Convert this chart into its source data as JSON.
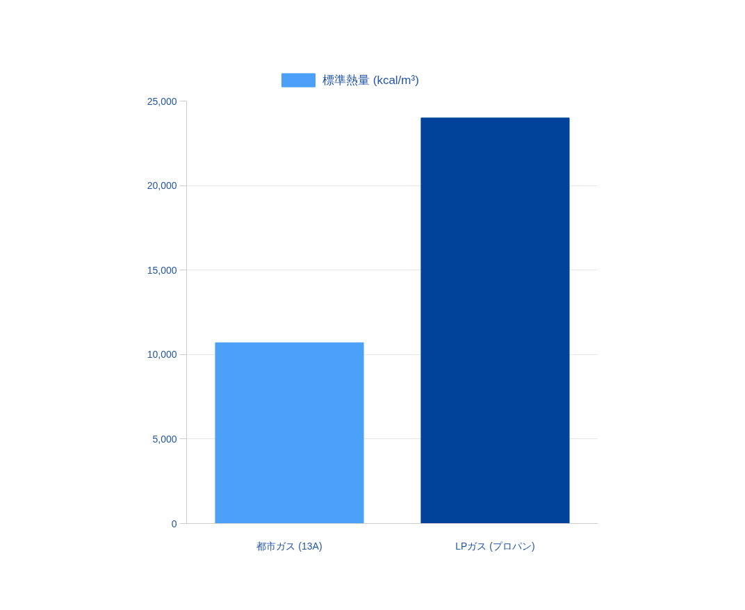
{
  "chart_data": {
    "type": "bar",
    "categories": [
      "都市ガス (13A)",
      "LPガス (プロパン)"
    ],
    "series": [
      {
        "name": "標準熱量 (kcal/m³)",
        "colors": [
          "#4ca0f8",
          "#01429b"
        ],
        "values": [
          10700,
          24000
        ]
      }
    ],
    "ylim": [
      0,
      25000
    ],
    "yticks": [
      0,
      {
        "value": 5000,
        "label": "5,000"
      },
      {
        "value": 10000,
        "label": "10,000"
      },
      {
        "value": 15000,
        "label": "15,000"
      },
      {
        "value": 20000,
        "label": "20,000"
      },
      {
        "value": 25000,
        "label": "25,000"
      }
    ],
    "grid": "y",
    "legend": "top"
  }
}
